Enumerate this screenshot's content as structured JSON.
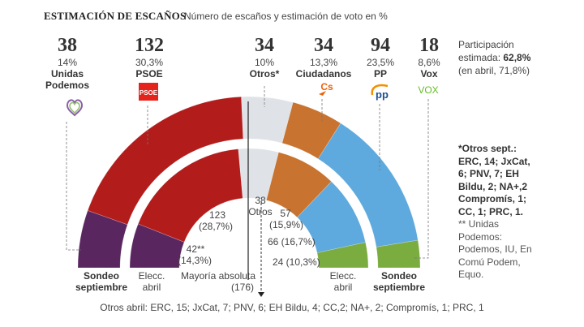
{
  "header": {
    "title": "ESTIMACIÓN DE ESCAÑOS",
    "subtitle": "Número de escaños y estimación de voto en %"
  },
  "participation": {
    "label": "Participación",
    "estimated_label": "estimada:",
    "estimated_value": "62,8%",
    "april": "(en abril, 71,8%)"
  },
  "notes": {
    "otros_sept": [
      "*Otros sept.:",
      "ERC, 14; JxCat,",
      "6; PNV, 7; EH",
      "Bildu, 2; NA+,2",
      "Compromís, 1;",
      "CC, 1; PRC, 1."
    ],
    "up_note": [
      "** Unidas",
      "Podemos:",
      "Podemos, IU, En",
      "Comú Podem,",
      "Equo."
    ]
  },
  "footer": "Otros abril: ERC, 15; JxCat, 7; PNV, 6; EH Bildu, 4; CC,2; NA+, 2; Compromís, 1; PRC, 1",
  "ring_labels": {
    "sept": [
      "Sondeo",
      "septiembre"
    ],
    "april": [
      "Elecc.",
      "abril"
    ],
    "majority": [
      "Mayoría absoluta",
      "(176)"
    ]
  },
  "chart_data": {
    "type": "pie",
    "subtype": "semicircle-parliament-donut",
    "title": "ESTIMACIÓN DE ESCAÑOS",
    "subtitle": "Número de escaños y estimación de voto en %",
    "total_seats": 350,
    "majority": 176,
    "categories": [
      "Unidas Podemos",
      "PSOE",
      "Otros",
      "Ciudadanos",
      "PP",
      "Vox"
    ],
    "colors": [
      "#5a2660",
      "#b21d1c",
      "#dfe3e8",
      "#c8732f",
      "#5ea9dd",
      "#7aac3f"
    ],
    "series": [
      {
        "name": "Sondeo septiembre",
        "ring": "outer",
        "seats": [
          38,
          132,
          34,
          34,
          94,
          18
        ],
        "vote_pct": [
          "14%",
          "30,3%",
          "10%",
          "13,3%",
          "23,5%",
          "8,6%"
        ]
      },
      {
        "name": "Elecc. abril",
        "ring": "inner",
        "seats": [
          42,
          123,
          38,
          57,
          66,
          24
        ],
        "vote_pct": [
          "14,3%",
          "28,7%",
          "",
          "15,9%",
          "16,7%",
          "10,3%"
        ]
      }
    ],
    "party_headers": [
      {
        "seats": "38",
        "pct": "14%",
        "name": [
          "Unidas",
          "Podemos"
        ],
        "logo": "podemos-heart-icon"
      },
      {
        "seats": "132",
        "pct": "30,3%",
        "name": [
          "PSOE"
        ],
        "logo": "psoe-logo-icon"
      },
      {
        "seats": "34",
        "pct": "10%",
        "name": [
          "Otros*"
        ],
        "logo": ""
      },
      {
        "seats": "34",
        "pct": "13,3%",
        "name": [
          "Ciudadanos"
        ],
        "logo": "cs-logo-icon"
      },
      {
        "seats": "94",
        "pct": "23,5%",
        "name": [
          "PP"
        ],
        "logo": "pp-logo-icon"
      },
      {
        "seats": "18",
        "pct": "8,6%",
        "name": [
          "Vox"
        ],
        "logo": "vox-logo-icon"
      }
    ],
    "inner_labels": [
      [
        "42**",
        "(14,3%)"
      ],
      [
        "123",
        "(28,7%)"
      ],
      [
        "38",
        "Otros"
      ],
      [
        "57",
        "(15,9%)"
      ],
      [
        "66 (16,7%)"
      ],
      [
        "24 (10,3%)"
      ]
    ],
    "logos": {
      "psoe_text": "PSOE",
      "cs_text": "Cs",
      "pp_text": "pp",
      "vox_text": "VOX"
    }
  }
}
